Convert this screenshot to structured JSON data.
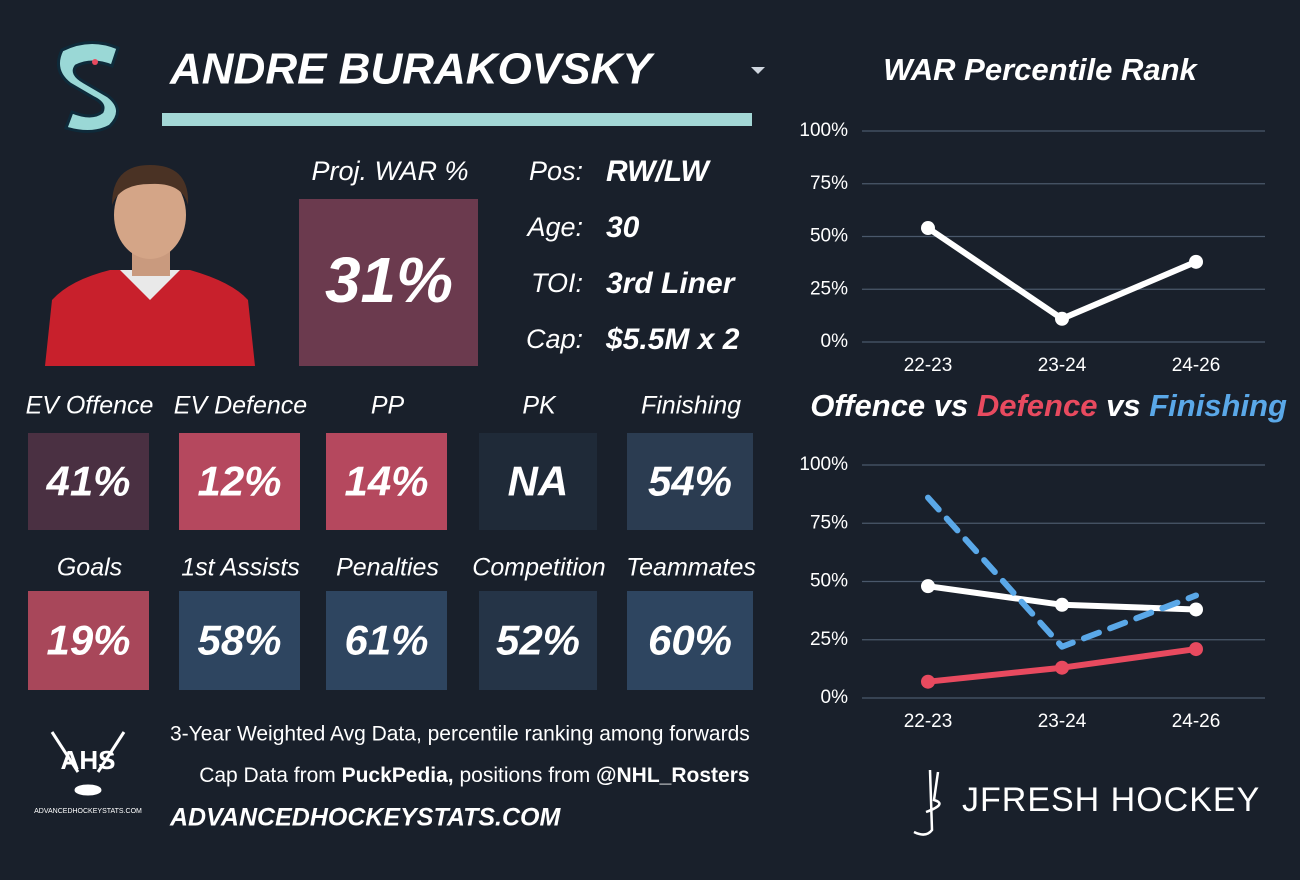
{
  "card": {
    "name": "ANDRE BURAKOVSKY",
    "proj_war": {
      "label": "Proj. WAR %",
      "value": "31%",
      "color": "#6b3a4e"
    },
    "info": [
      {
        "label": "Pos:",
        "value": "RW/LW"
      },
      {
        "label": "Age:",
        "value": "30"
      },
      {
        "label": "TOI:",
        "value": "3rd Liner"
      },
      {
        "label": "Cap:",
        "value": "$5.5M x 2"
      }
    ],
    "tiles": [
      {
        "label": "EV Offence",
        "value": "41%",
        "color": "#4a3042"
      },
      {
        "label": "EV Defence",
        "value": "12%",
        "color": "#b5485e"
      },
      {
        "label": "PP",
        "value": "14%",
        "color": "#b5485e"
      },
      {
        "label": "PK",
        "value": "NA",
        "color": "#1f2a38"
      },
      {
        "label": "Finishing",
        "value": "54%",
        "color": "#2b3c51"
      },
      {
        "label": "Goals",
        "value": "19%",
        "color": "#a8475a"
      },
      {
        "label": "1st Assists",
        "value": "58%",
        "color": "#2e4560"
      },
      {
        "label": "Penalties",
        "value": "61%",
        "color": "#2e4560"
      },
      {
        "label": "Competition",
        "value": "52%",
        "color": "#253447"
      },
      {
        "label": "Teammates",
        "value": "60%",
        "color": "#2e4560"
      }
    ]
  },
  "footer": {
    "line1": "3-Year Weighted Avg Data, percentile ranking among forwards",
    "line2": [
      "Cap Data from ",
      "PuckPedia,",
      " positions from ",
      "@NHL_Rosters"
    ],
    "site": "ADVANCEDHOCKEYSTATS.COM",
    "logo_text": "AHS",
    "logo_caption": "ADVANCEDHOCKEYSTATS.COM",
    "brand": "JFRESH HOCKEY"
  },
  "chart_data": [
    {
      "type": "line",
      "title": "WAR Percentile Rank",
      "categories": [
        "22-23",
        "23-24",
        "24-26"
      ],
      "values": [
        54,
        11,
        38
      ],
      "color": "#ffffff",
      "ylim": [
        0,
        100
      ],
      "yticks": [
        {
          "value": 0,
          "label": "0%"
        },
        {
          "value": 25,
          "label": "25%"
        },
        {
          "value": 50,
          "label": "50%"
        },
        {
          "value": 75,
          "label": "75%"
        },
        {
          "value": 100,
          "label": "100%"
        }
      ],
      "grid": true
    },
    {
      "type": "line",
      "title_separator": "vs",
      "categories": [
        "22-23",
        "23-24",
        "24-26"
      ],
      "series": [
        {
          "name": "Offence",
          "color": "#ffffff",
          "values": [
            48,
            40,
            38
          ],
          "dashed": false,
          "markers": true
        },
        {
          "name": "Defence",
          "color": "#e84a5f",
          "values": [
            7,
            13,
            21
          ],
          "dashed": false,
          "markers": true
        },
        {
          "name": "Finishing",
          "color": "#5aa8e8",
          "values": [
            86,
            22,
            44
          ],
          "dashed": true,
          "markers": false
        }
      ],
      "ylim": [
        0,
        100
      ],
      "yticks": [
        {
          "value": 0,
          "label": "0%"
        },
        {
          "value": 25,
          "label": "25%"
        },
        {
          "value": 50,
          "label": "50%"
        },
        {
          "value": 75,
          "label": "75%"
        },
        {
          "value": 100,
          "label": "100%"
        }
      ],
      "grid": true
    }
  ]
}
